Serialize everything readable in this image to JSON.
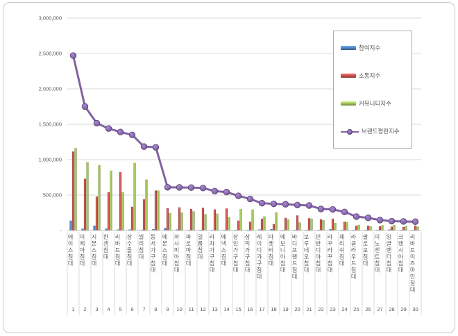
{
  "window": {
    "background": "#ffffff",
    "border_color": "#c9c9c9"
  },
  "legend": {
    "position": "inside-top-right",
    "border_color": "#ababab",
    "items": [
      "참여지수",
      "소통지수",
      "커뮤니티지수",
      "브랜드평판지수"
    ]
  },
  "chart_data": {
    "type": "bar+line combo",
    "title": "",
    "xlabel": "",
    "ylabel": "",
    "grid": true,
    "gridline_color": "#d9d9d9",
    "axis_line_color": "#bfbfbf",
    "text_color": "#595959",
    "y_axis": {
      "min": 0,
      "max": 3000000,
      "step": 500000,
      "ticks": [
        {
          "value": 3000000,
          "label": "3,000,000"
        },
        {
          "value": 2500000,
          "label": "2,500,000"
        },
        {
          "value": 2000000,
          "label": "2,000,000"
        },
        {
          "value": 1500000,
          "label": "1,500,000"
        },
        {
          "value": 1000000,
          "label": "1,000,000"
        },
        {
          "value": 500000,
          "label": "500,000"
        },
        {
          "value": 0,
          "label": "-"
        }
      ]
    },
    "categories": [
      {
        "rank": "1",
        "label": "에이스침대"
      },
      {
        "rank": "2",
        "label": "이케아침대"
      },
      {
        "rank": "3",
        "label": "시몬스침대"
      },
      {
        "rank": "4",
        "label": "한샘침대"
      },
      {
        "rank": "5",
        "label": "리바트침대"
      },
      {
        "rank": "6",
        "label": "장수돌침대"
      },
      {
        "rank": "7",
        "label": "씰리침대"
      },
      {
        "rank": "8",
        "label": "동서가구침대"
      },
      {
        "rank": "9",
        "label": "에몬스침대"
      },
      {
        "rank": "10",
        "label": "까사미아침대"
      },
      {
        "rank": "11",
        "label": "파로마침대"
      },
      {
        "rank": "12",
        "label": "일룸침대"
      },
      {
        "rank": "13",
        "label": "라자가구침대"
      },
      {
        "rank": "14",
        "label": "에넥스침대"
      },
      {
        "rank": "15",
        "label": "장인가구침대"
      },
      {
        "rank": "16",
        "label": "삼익가구침대"
      },
      {
        "rank": "17",
        "label": "레이디가구침대"
      },
      {
        "rank": "18",
        "label": "마켓비침대"
      },
      {
        "rank": "19",
        "label": "에보니아침대"
      },
      {
        "rank": "20",
        "label": "바디프랜드침대"
      },
      {
        "rank": "21",
        "label": "보루네오침대"
      },
      {
        "rank": "22",
        "label": "핀란디아침대"
      },
      {
        "rank": "23",
        "label": "라꾸라꾸침대"
      },
      {
        "rank": "24",
        "label": "체리쉬침대"
      },
      {
        "rank": "25",
        "label": "라클라우드침대"
      },
      {
        "rank": "26",
        "label": "팔로모침대"
      },
      {
        "rank": "27",
        "label": "이노센트침대"
      },
      {
        "rank": "28",
        "label": "잉글랜더침대"
      },
      {
        "rank": "29",
        "label": "크렌시아침대"
      },
      {
        "rank": "30",
        "label": "리바트이즈마인침대"
      }
    ],
    "series": [
      {
        "key": "participation",
        "name": "참여지수",
        "type": "bar",
        "color": "#4f81bd",
        "values": [
          140000,
          26000,
          69000,
          26000,
          15000,
          15000,
          10000,
          20000,
          36000,
          15000,
          10000,
          10000,
          10000,
          10000,
          10000,
          10000,
          15000,
          20000,
          10000,
          10000,
          10000,
          10000,
          20000,
          10000,
          10000,
          10000,
          10000,
          15000,
          10000,
          10000
        ]
      },
      {
        "key": "communication",
        "name": "소통지수",
        "type": "bar",
        "color": "#c0504d",
        "values": [
          1115000,
          730000,
          480000,
          540000,
          825000,
          335000,
          440000,
          565000,
          315000,
          327000,
          304000,
          320000,
          297000,
          311000,
          140000,
          124000,
          167000,
          91000,
          179000,
          213000,
          174000,
          157000,
          167000,
          124000,
          69000,
          69000,
          60000,
          55000,
          50000,
          70000
        ]
      },
      {
        "key": "community",
        "name": "커뮤니티지수",
        "type": "bar",
        "color": "#9bbb59",
        "values": [
          1165000,
          965000,
          925000,
          845000,
          540000,
          955000,
          720000,
          565000,
          245000,
          255000,
          271000,
          232000,
          238000,
          189000,
          304000,
          297000,
          199000,
          255000,
          157000,
          115000,
          167000,
          147000,
          108000,
          118000,
          81000,
          59000,
          75000,
          80000,
          65000,
          55000
        ]
      },
      {
        "key": "reputation",
        "name": "브랜드평판지수",
        "type": "line",
        "color": "#8064a2",
        "values": [
          2470000,
          1750000,
          1515000,
          1440000,
          1390000,
          1350000,
          1185000,
          1175000,
          610000,
          608000,
          606000,
          600000,
          556000,
          542000,
          490000,
          445000,
          385000,
          376000,
          370000,
          360000,
          353000,
          304000,
          297000,
          262000,
          196000,
          179000,
          147000,
          132000,
          128000,
          124000
        ]
      }
    ]
  }
}
